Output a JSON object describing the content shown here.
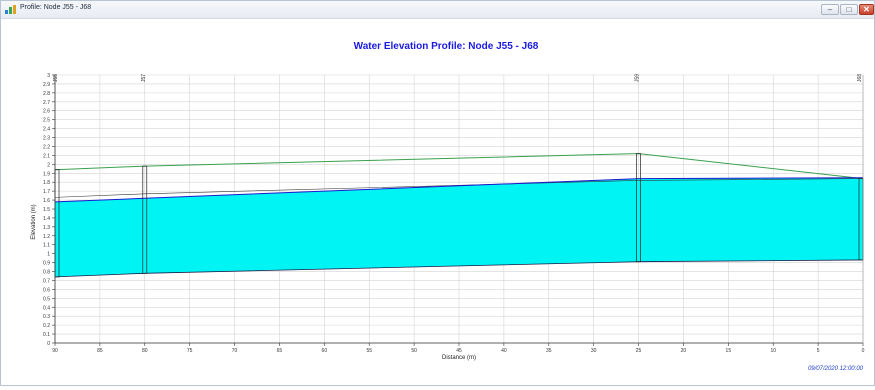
{
  "window": {
    "title": "Profile: Node J55 - J68",
    "icon": "profile-chart-icon",
    "controls": {
      "minimize": "minimize-icon",
      "maximize": "maximize-icon",
      "close": "close-icon"
    }
  },
  "chart_data": {
    "type": "area",
    "title": "Water Elevation Profile: Node J55 - J68",
    "xlabel": "Distance (m)",
    "ylabel": "Elevation (m)",
    "xlim": [
      90,
      0
    ],
    "ylim": [
      0,
      3
    ],
    "x_ticks": [
      90,
      85,
      80,
      75,
      70,
      65,
      60,
      55,
      50,
      45,
      40,
      35,
      30,
      25,
      20,
      15,
      10,
      5,
      0
    ],
    "y_ticks": [
      0,
      0.1,
      0.2,
      0.3,
      0.4,
      0.5,
      0.6,
      0.7,
      0.8,
      0.9,
      1,
      1.1,
      1.2,
      1.3,
      1.4,
      1.5,
      1.6,
      1.7,
      1.8,
      1.9,
      2,
      2.1,
      2.2,
      2.3,
      2.4,
      2.5,
      2.6,
      2.7,
      2.8,
      2.9,
      3
    ],
    "grid": true,
    "nodes": [
      {
        "label": "J55",
        "x": 90,
        "invert": 0.74,
        "ground": 1.94
      },
      {
        "label": "J57",
        "x": 80,
        "invert": 0.78,
        "ground": 1.98
      },
      {
        "label": "J59",
        "x": 25,
        "invert": 0.91,
        "ground": 2.12
      },
      {
        "label": "J68",
        "x": 0,
        "invert": 0.93,
        "ground": 1.84
      }
    ],
    "water_surface": [
      {
        "x": 90,
        "y": 1.58
      },
      {
        "x": 80,
        "y": 1.62
      },
      {
        "x": 25,
        "y": 1.84
      },
      {
        "x": 0,
        "y": 1.85
      }
    ],
    "pipe_crown": [
      {
        "x": 90,
        "y": 1.63
      },
      {
        "x": 80,
        "y": 1.67
      },
      {
        "x": 25,
        "y": 1.82
      },
      {
        "x": 0,
        "y": 1.84
      }
    ],
    "colors": {
      "water": "#00f4f4",
      "ground": "#39a14c",
      "water_line": "#1b1bd1",
      "title": "#1a1ae6",
      "timestamp": "#1f3fcf",
      "grid": "#d4d4d4"
    },
    "timestamp": "09/07/2020 12:00:00"
  }
}
